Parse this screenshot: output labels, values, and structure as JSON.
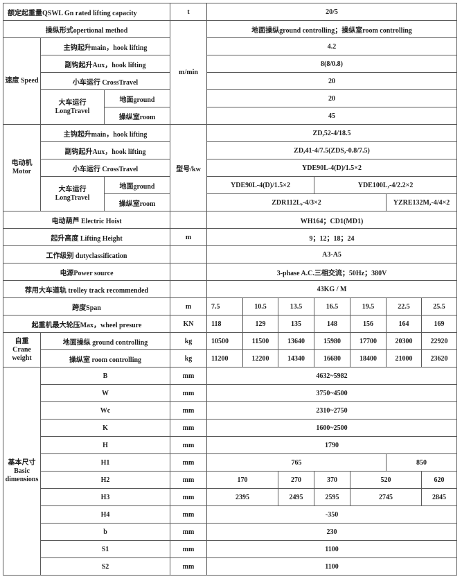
{
  "capacity": {
    "label": "额定起重量QSWL Gn rated lifting capacity",
    "unit": "t",
    "value": "20/5"
  },
  "method": {
    "label": "操纵形式opertional method",
    "value": "地面操纵ground controlling；操纵室room controlling"
  },
  "speed": {
    "group": "速度 Speed",
    "unit": "m/min",
    "main": {
      "label": "主钩起升main，hook lifting",
      "value": "4.2"
    },
    "aux": {
      "label": "副钩起升Aux，hook lifting",
      "value": "8(8/0.8)"
    },
    "cross": {
      "label": "小车运行 CrossTravel",
      "value": "20"
    },
    "long": {
      "label": "大车运行 LongTravel",
      "ground_label": "地面ground",
      "ground": "20",
      "room_label": "操纵室room",
      "room": "45"
    }
  },
  "motor": {
    "group": "电动机 Motor",
    "unit": "型号/kw",
    "main": {
      "label": "主钩起升main，hook lifting",
      "value": "ZD,52-4/18.5"
    },
    "aux": {
      "label": "副钩起升Aux，hook lifting",
      "value": "ZD,41-4/7.5(ZDS,-0.8/7.5)"
    },
    "cross": {
      "label": "小车运行 CrossTravel",
      "value": "YDE90L-4(D)/1.5×2"
    },
    "long": {
      "label": "大车运行 LongTravel",
      "ground_label": "地面ground",
      "ground": [
        "YDE90L-4(D)/1.5×2",
        "YDE100L,-4/2.2×2"
      ],
      "room_label": "操纵室room",
      "room": [
        "ZDR112L,-4/3×2",
        "YZRE132M,-4/4×2"
      ]
    }
  },
  "hoist": {
    "label": "电动葫芦 Electric Hoist",
    "value": "WH164；CD1(MD1)"
  },
  "height": {
    "label": "起升高度 Lifting Height",
    "unit": "m",
    "value": "9；12；18；24"
  },
  "duty": {
    "label": "工作级别 dutyclassification",
    "value": "A3-A5"
  },
  "power": {
    "label": "电源Power source",
    "value": "3-phase A.C.三相交流；50Hz；380V"
  },
  "track": {
    "label": "荐用大车道轨 trolley track recommended",
    "value": "43KG / M"
  },
  "span": {
    "label": "跨度Span",
    "unit": "m",
    "values": [
      "7.5",
      "10.5",
      "13.5",
      "16.5",
      "19.5",
      "22.5",
      "25.5"
    ]
  },
  "wheel": {
    "label": "起重机最大轮压Max，wheel presure",
    "unit": "KN",
    "values": [
      "118",
      "129",
      "135",
      "148",
      "156",
      "164",
      "169"
    ]
  },
  "weight": {
    "group": "自重 Crane weight",
    "ground": {
      "label": "地面操纵 ground controlling",
      "unit": "kg",
      "values": [
        "10500",
        "11500",
        "13640",
        "15980",
        "17700",
        "20300",
        "22920"
      ]
    },
    "room": {
      "label": "操纵室 room controlling",
      "unit": "kg",
      "values": [
        "11200",
        "12200",
        "14340",
        "16680",
        "18400",
        "21000",
        "23620"
      ]
    }
  },
  "dims": {
    "group": "基本尺寸 Basic dimensions",
    "unit": "mm",
    "B": {
      "label": "B",
      "value": "4632~5982"
    },
    "W": {
      "label": "W",
      "value": "3750~4500"
    },
    "Wc": {
      "label": "Wc",
      "value": "2310~2750"
    },
    "K": {
      "label": "K",
      "value": "1600~2500"
    },
    "H": {
      "label": "H",
      "value": "1790"
    },
    "H1": {
      "label": "H1",
      "values": [
        "765",
        "850"
      ]
    },
    "H2": {
      "label": "H2",
      "values": [
        "170",
        "270",
        "370",
        "520",
        "620"
      ]
    },
    "H3": {
      "label": "H3",
      "values": [
        "2395",
        "2495",
        "2595",
        "2745",
        "2845"
      ]
    },
    "H4": {
      "label": "H4",
      "value": "-350"
    },
    "b": {
      "label": "b",
      "value": "230"
    },
    "S1": {
      "label": "S1",
      "value": "1100"
    },
    "S2": {
      "label": "S2",
      "value": "1100"
    }
  }
}
